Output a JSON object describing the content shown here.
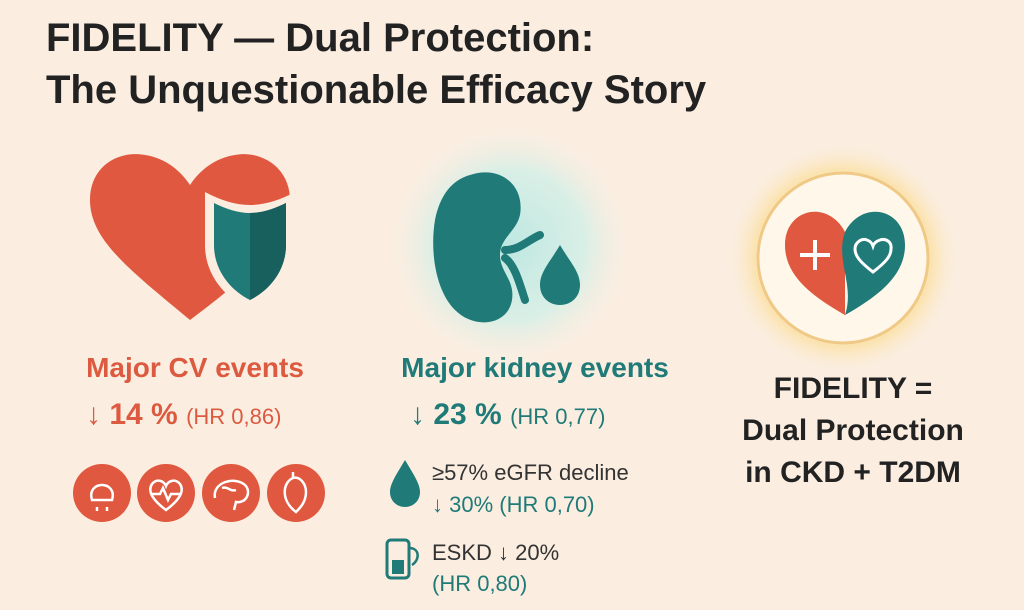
{
  "header": {
    "title_lines": [
      "FIDELITY — Dual Protection:",
      "The Unquestionable Efficacy Story"
    ]
  },
  "panels": [
    {
      "heading": "Major CV events",
      "reduction": "↓ 14 %",
      "hazard_ratio": "(HR 0,86)"
    },
    {
      "heading": "Major kidney events",
      "reduction": "↓ 23 %",
      "hazard_ratio": "(HR 0,77)",
      "sub_outcomes": [
        {
          "label": "≥57% eGFR decline",
          "result": "↓ 30% (HR 0,70)"
        },
        {
          "label": "ESKD ↓ 20%",
          "result": "(HR 0,80)"
        }
      ]
    }
  ],
  "summary": {
    "lines": [
      "FIDELITY =",
      "Dual Protection",
      "in CKD + T2DM"
    ]
  }
}
